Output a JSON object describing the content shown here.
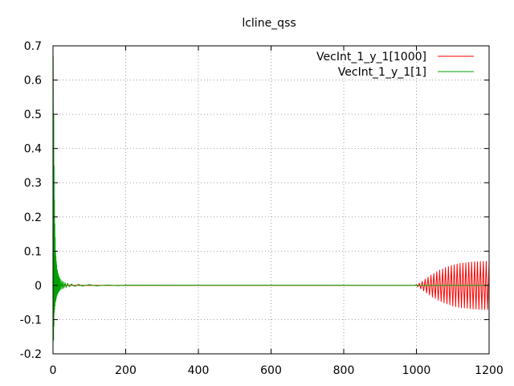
{
  "chart_data": {
    "type": "line",
    "title": "lcline_qss",
    "xlabel": "",
    "ylabel": "",
    "xlim": [
      0,
      1200
    ],
    "ylim": [
      -0.2,
      0.7
    ],
    "x_ticks": [
      0,
      200,
      400,
      600,
      800,
      1000,
      1200
    ],
    "x_tick_labels": [
      "0",
      "200",
      "400",
      "600",
      "800",
      "1000",
      "1200"
    ],
    "y_ticks": [
      -0.2,
      -0.1,
      0,
      0.1,
      0.2,
      0.3,
      0.4,
      0.5,
      0.6,
      0.7
    ],
    "y_tick_labels": [
      "-0.2",
      "-0.1",
      "0",
      "0.1",
      "0.2",
      "0.3",
      "0.4",
      "0.5",
      "0.6",
      "0.7"
    ],
    "grid": true,
    "legend_position": "top-right",
    "series": [
      {
        "name": "VecInt_1_y_1[1000]",
        "color": "#ff0000",
        "x": [
          0,
          995,
          1000,
          1004,
          1008,
          1012,
          1016,
          1020,
          1024,
          1028,
          1032,
          1036,
          1040,
          1044,
          1048,
          1052,
          1056,
          1060,
          1064,
          1068,
          1072,
          1076,
          1080,
          1084,
          1088,
          1092,
          1096,
          1100,
          1104,
          1108,
          1112,
          1116,
          1120,
          1124,
          1128,
          1132,
          1136,
          1140,
          1144,
          1148,
          1152,
          1156,
          1160,
          1164,
          1168,
          1172,
          1176,
          1180,
          1184,
          1188,
          1192,
          1196,
          1200
        ],
        "y": [
          0,
          0,
          0.002,
          -0.004,
          0.006,
          -0.01,
          0.012,
          -0.016,
          0.018,
          -0.022,
          0.024,
          -0.028,
          0.03,
          -0.034,
          0.035,
          -0.038,
          0.04,
          -0.043,
          0.044,
          -0.047,
          0.048,
          -0.051,
          0.052,
          -0.054,
          0.055,
          -0.057,
          0.058,
          -0.06,
          0.06,
          -0.062,
          0.062,
          -0.064,
          0.064,
          -0.065,
          0.065,
          -0.066,
          0.066,
          -0.067,
          0.067,
          -0.068,
          0.068,
          -0.069,
          0.069,
          -0.069,
          0.069,
          -0.07,
          0.07,
          -0.07,
          0.07,
          -0.07,
          0.07,
          -0.07,
          0.07
        ]
      },
      {
        "name": "VecInt_1_y_1[1]",
        "color": "#00a000",
        "x": [
          0,
          0.5,
          1,
          1.5,
          2,
          2.5,
          3,
          3.5,
          4,
          4.5,
          5,
          5.5,
          6,
          6.5,
          7,
          7.5,
          8,
          8.5,
          9,
          9.5,
          10,
          11,
          12,
          13,
          14,
          15,
          16,
          17,
          18,
          19,
          20,
          22,
          24,
          26,
          28,
          30,
          33,
          36,
          40,
          45,
          50,
          60,
          70,
          80,
          100,
          120,
          150,
          180,
          200,
          1200
        ],
        "y": [
          0,
          0.67,
          0.3,
          -0.16,
          0.5,
          -0.12,
          0.35,
          -0.08,
          0.25,
          -0.07,
          0.18,
          -0.06,
          0.14,
          -0.05,
          0.1,
          -0.045,
          0.085,
          -0.04,
          0.07,
          -0.035,
          0.06,
          -0.03,
          0.045,
          -0.025,
          0.035,
          -0.02,
          0.028,
          -0.017,
          0.022,
          -0.014,
          0.018,
          -0.012,
          0.014,
          -0.01,
          0.011,
          -0.008,
          0.008,
          -0.006,
          0.006,
          -0.004,
          0.004,
          -0.003,
          0.003,
          -0.002,
          0.002,
          -0.0015,
          0.001,
          -0.0008,
          0.0005,
          0
        ]
      }
    ]
  }
}
